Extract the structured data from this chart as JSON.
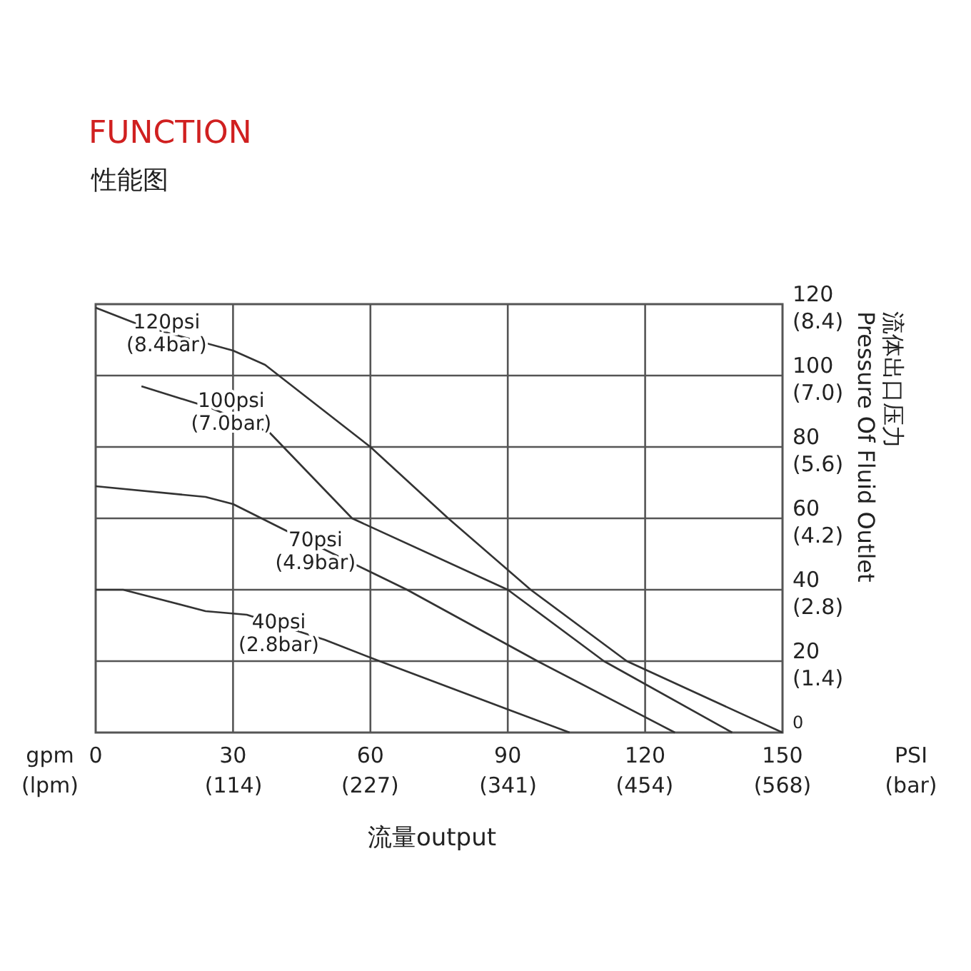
{
  "chart_data": {
    "type": "line",
    "title": "FUNCTION",
    "subtitle": "性能图",
    "xlabel": "流量output",
    "y2label": "流体出口压力\nPressure Of Fluid Outlet",
    "xlim": [
      0,
      150
    ],
    "ylim": [
      0,
      120
    ],
    "grid": true,
    "xticks": [
      0,
      30,
      60,
      90,
      120,
      150
    ],
    "x2lim": [
      0,
      568
    ],
    "x2ticks": [
      {
        "value": 114,
        "label": "(114)"
      },
      {
        "value": 227,
        "label": "(227)"
      },
      {
        "value": 341,
        "label": "(341)"
      },
      {
        "value": 454,
        "label": "(454)"
      },
      {
        "value": 568,
        "label": "(568)"
      }
    ],
    "yticks": [
      0,
      20,
      40,
      60,
      80,
      100,
      120
    ],
    "y2lim": [
      0,
      8.4
    ],
    "y2ticks": [
      {
        "value": 1.4,
        "label": "(1.4)"
      },
      {
        "value": 2.8,
        "label": "(2.8)"
      },
      {
        "value": 4.2,
        "label": "(4.2)"
      },
      {
        "value": 5.6,
        "label": "(5.6)"
      },
      {
        "value": 7.0,
        "label": "(7.0)"
      },
      {
        "value": 8.4,
        "label": "(8.4)"
      }
    ],
    "series": [
      {
        "color": "#333333",
        "x": [
          0,
          10,
          30,
          37,
          60,
          77,
          95,
          116,
          150
        ],
        "values": [
          119,
          114,
          107,
          103,
          80,
          60,
          40,
          20,
          0
        ]
      },
      {
        "color": "#333333",
        "x": [
          10,
          25,
          38,
          56,
          90,
          111,
          139
        ],
        "values": [
          97,
          91,
          84,
          60,
          40,
          20,
          0
        ]
      },
      {
        "color": "#333333",
        "x": [
          0,
          24,
          30,
          44,
          60,
          68,
          96.5,
          126.5
        ],
        "values": [
          69,
          66,
          64,
          55,
          45,
          40,
          20,
          0
        ]
      },
      {
        "color": "#333333",
        "x": [
          0,
          6,
          24,
          33,
          50,
          62,
          91,
          103.5
        ],
        "values": [
          40,
          40,
          34,
          33,
          26,
          20,
          6,
          0
        ]
      }
    ],
    "annotations": [
      "gpm\n(lpm)",
      "PSI\n(bar)",
      {
        "text": "120psi\n(8.4bar)",
        "x": 15.5,
        "y": 112
      },
      {
        "text": "100psi\n(7.0bar)",
        "x": 29.6,
        "y": 90
      },
      {
        "text": "70psi\n(4.9bar)",
        "x": 48,
        "y": 51
      },
      {
        "text": "40psi\n(2.8bar)",
        "x": 40,
        "y": 28
      }
    ]
  }
}
